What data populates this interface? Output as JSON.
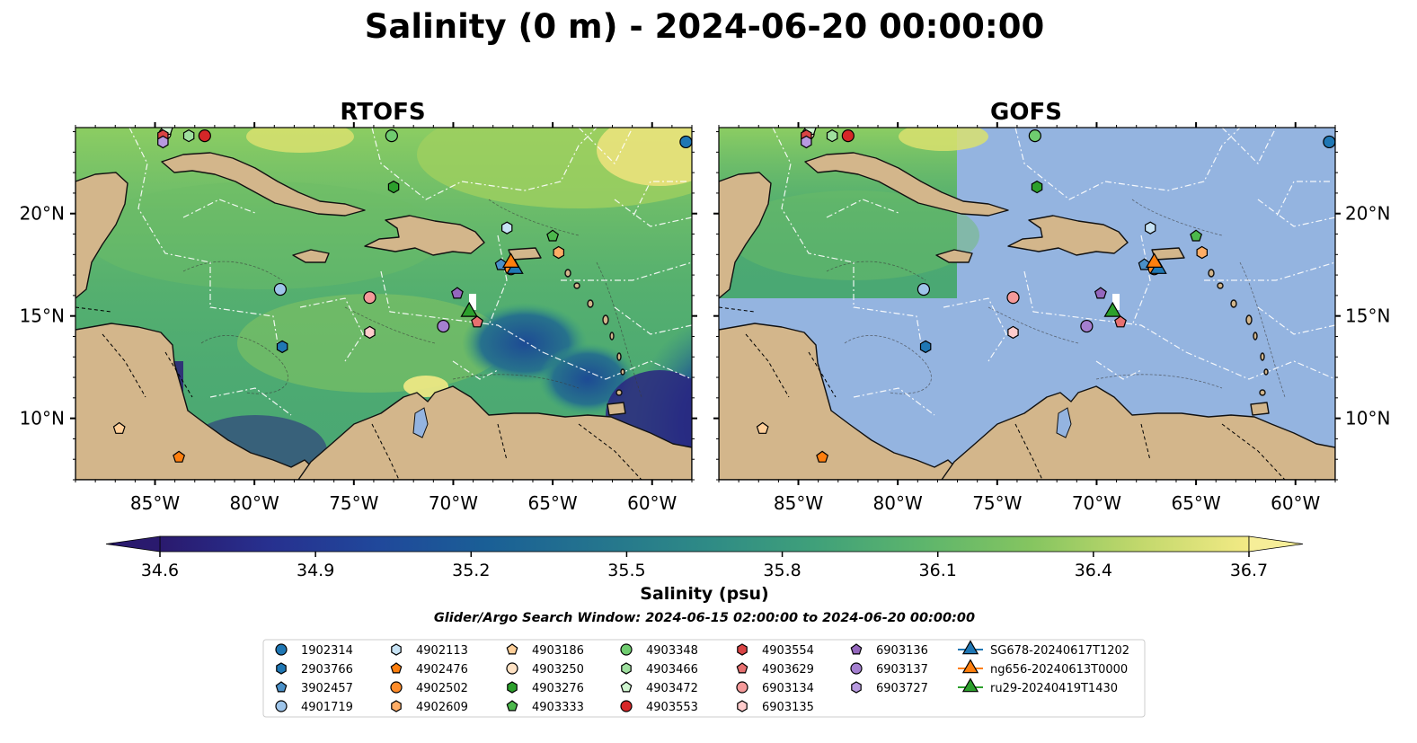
{
  "figure": {
    "title": "Salinity (0 m) - 2024-06-20 00:00:00",
    "search_window": "Glider/Argo Search Window: 2024-06-15 02:00:00 to 2024-06-20 00:00:00"
  },
  "panels": [
    {
      "title": "RTOFS",
      "coverage": "full"
    },
    {
      "title": "GOFS",
      "coverage": "partial",
      "no_data_color": "#94b4e0"
    }
  ],
  "map_extent": {
    "lon": [
      -89,
      -58
    ],
    "lat": [
      7,
      24.2
    ]
  },
  "axes": {
    "lon_ticks": [
      -85,
      -80,
      -75,
      -70,
      -65,
      -60
    ],
    "lon_labels": [
      "85°W",
      "80°W",
      "75°W",
      "70°W",
      "65°W",
      "60°W"
    ],
    "lat_ticks": [
      10,
      15,
      20
    ],
    "lat_labels": [
      "10°N",
      "15°N",
      "20°N"
    ]
  },
  "colorbar": {
    "label": "Salinity (psu)",
    "min": 34.6,
    "max": 36.7,
    "tick_labels": [
      "34.6",
      "34.9",
      "35.2",
      "35.5",
      "35.8",
      "36.1",
      "36.4",
      "36.7"
    ],
    "colormap": [
      "#2a1a6e",
      "#27308f",
      "#20489b",
      "#1a5f96",
      "#24748e",
      "#2e8a86",
      "#3fa07a",
      "#5db56c",
      "#85c560",
      "#c2d86c",
      "#f3ea85"
    ]
  },
  "chart_data": {
    "type": "scatter",
    "x_label": "",
    "y_label": "",
    "series": [
      {
        "name": "1902314",
        "marker": "circle",
        "color": "#1f77b4",
        "lon": -58.3,
        "lat": 23.5
      },
      {
        "name": "2903766",
        "marker": "hexagon",
        "color": "#1f77b4",
        "lon": -78.6,
        "lat": 13.5
      },
      {
        "name": "3902457",
        "marker": "pentagon",
        "color": "#4a90c8",
        "lon": -67.6,
        "lat": 17.5
      },
      {
        "name": "4901719",
        "marker": "circle",
        "color": "#9ec5ea",
        "lon": -78.7,
        "lat": 16.3
      },
      {
        "name": "4902113",
        "marker": "hexagon",
        "color": "#c7e3f5",
        "lon": -67.3,
        "lat": 19.3
      },
      {
        "name": "4902476",
        "marker": "pentagon",
        "color": "#ff7f0e",
        "lon": -83.8,
        "lat": 8.1
      },
      {
        "name": "4902502",
        "marker": "circle",
        "color": "#ff8c2a",
        "lon": -67.1,
        "lat": 17.3
      },
      {
        "name": "4902609",
        "marker": "hexagon",
        "color": "#ffad66",
        "lon": -64.7,
        "lat": 18.1
      },
      {
        "name": "4903186",
        "marker": "pentagon",
        "color": "#ffcf99",
        "lon": -86.8,
        "lat": 9.5
      },
      {
        "name": "4903250",
        "marker": "circle",
        "color": "#ffe2c4",
        "lon": -84.5,
        "lat": 23.9
      },
      {
        "name": "4903276",
        "marker": "hexagon",
        "color": "#2ca02c",
        "lon": -73.0,
        "lat": 21.3
      },
      {
        "name": "4903333",
        "marker": "pentagon",
        "color": "#4cb84c",
        "lon": -65.0,
        "lat": 18.9
      },
      {
        "name": "4903348",
        "marker": "circle",
        "color": "#6fcc6f",
        "lon": -73.1,
        "lat": 23.8
      },
      {
        "name": "4903466",
        "marker": "hexagon",
        "color": "#9fe09f",
        "lon": -83.3,
        "lat": 23.8
      },
      {
        "name": "4903472",
        "marker": "pentagon",
        "color": "#cff5cf",
        "lon": -84.4,
        "lat": 24.1
      },
      {
        "name": "4903553",
        "marker": "circle",
        "color": "#d62728",
        "lon": -82.5,
        "lat": 23.8
      },
      {
        "name": "4903554",
        "marker": "hexagon",
        "color": "#d94445",
        "lon": -84.6,
        "lat": 23.8
      },
      {
        "name": "4903629",
        "marker": "pentagon",
        "color": "#e77070",
        "lon": -68.8,
        "lat": 14.7
      },
      {
        "name": "6903134",
        "marker": "circle",
        "color": "#f59a9a",
        "lon": -74.2,
        "lat": 15.9
      },
      {
        "name": "6903135",
        "marker": "hexagon",
        "color": "#ffcccc",
        "lon": -74.2,
        "lat": 14.2
      },
      {
        "name": "6903136",
        "marker": "pentagon",
        "color": "#9467bd",
        "lon": -69.8,
        "lat": 16.1
      },
      {
        "name": "6903137",
        "marker": "circle",
        "color": "#a47fd0",
        "lon": -70.5,
        "lat": 14.5
      },
      {
        "name": "6903727",
        "marker": "hexagon",
        "color": "#b89ae0",
        "lon": -84.6,
        "lat": 23.5
      },
      {
        "name": "SG678-20240617T1202",
        "marker": "triangle",
        "color": "#1f77b4",
        "lon": -66.9,
        "lat": 17.3
      },
      {
        "name": "ng656-20240613T0000",
        "marker": "triangle",
        "color": "#ff7f0e",
        "lon": -67.1,
        "lat": 17.6
      },
      {
        "name": "ru29-20240419T1430",
        "marker": "triangle",
        "color": "#2ca02c",
        "lon": -69.2,
        "lat": 15.2
      }
    ]
  }
}
